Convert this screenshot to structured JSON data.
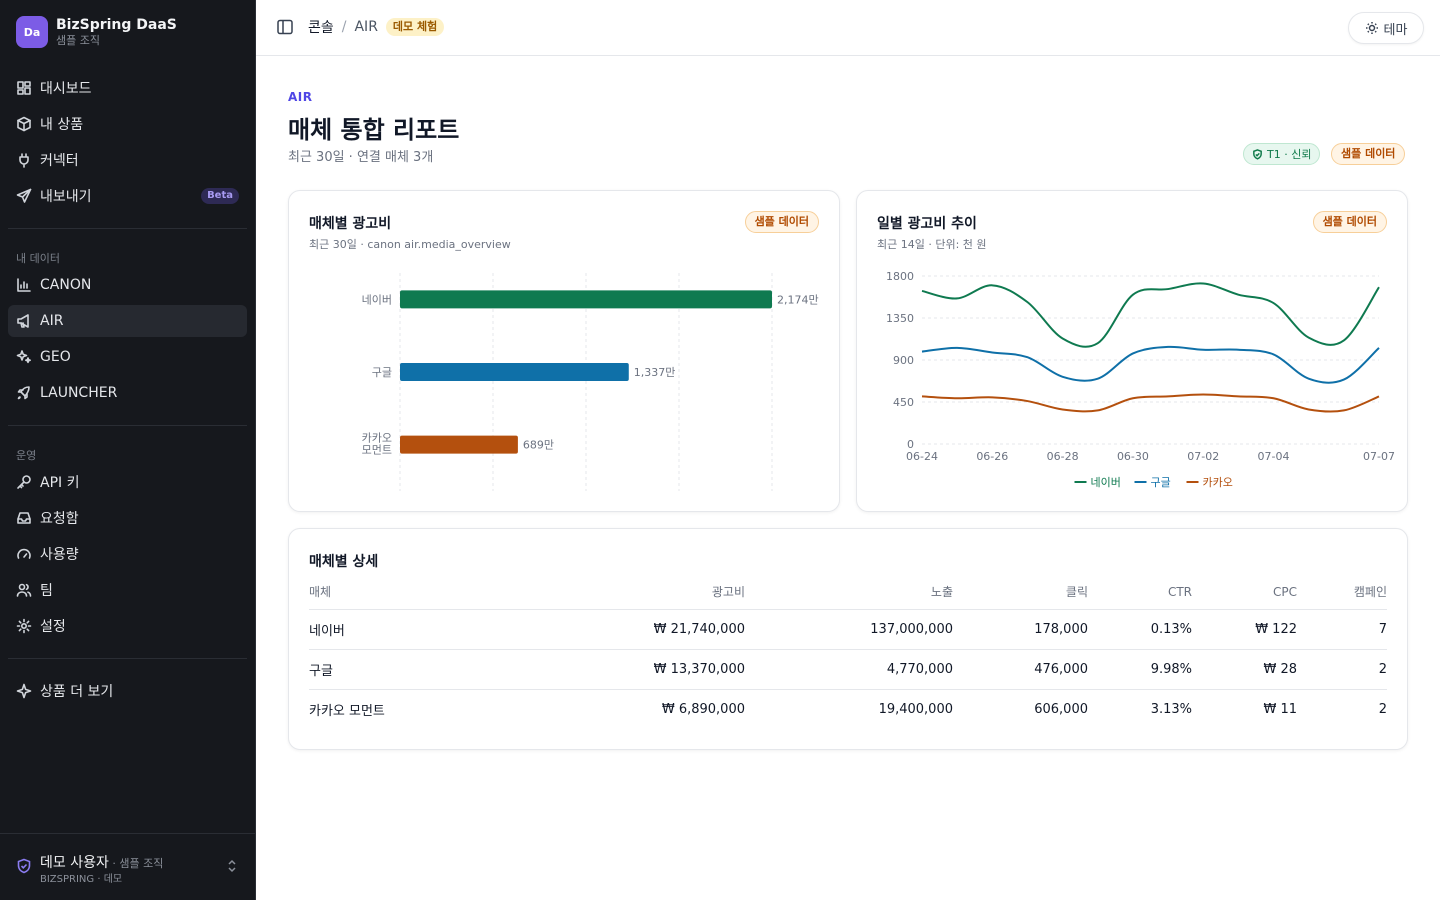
{
  "brand": {
    "logo": "Da",
    "name": "BizSpring DaaS",
    "org": "샘플 조직"
  },
  "nav_main": [
    {
      "label": "대시보드",
      "icon": "grid-icon"
    },
    {
      "label": "내 상품",
      "icon": "package-icon"
    },
    {
      "label": "커넥터",
      "icon": "plug-icon"
    },
    {
      "label": "내보내기",
      "icon": "send-icon",
      "badge": "Beta"
    }
  ],
  "section_data": "내 데이터",
  "nav_data": [
    {
      "label": "CANON",
      "icon": "bar-chart-icon"
    },
    {
      "label": "AIR",
      "icon": "megaphone-icon",
      "active": true
    },
    {
      "label": "GEO",
      "icon": "sparkles-icon"
    },
    {
      "label": "LAUNCHER",
      "icon": "rocket-icon"
    }
  ],
  "section_ops": "운영",
  "nav_ops": [
    {
      "label": "API 키",
      "icon": "key-icon"
    },
    {
      "label": "요청함",
      "icon": "inbox-icon"
    },
    {
      "label": "사용량",
      "icon": "gauge-icon"
    },
    {
      "label": "팀",
      "icon": "users-icon"
    },
    {
      "label": "설정",
      "icon": "gear-icon"
    }
  ],
  "nav_more": {
    "label": "상품 더 보기",
    "icon": "sparkle-icon"
  },
  "user": {
    "name": "데모 사용자",
    "org": " · 샘플 조직",
    "sub": "BIZSPRING · 데모"
  },
  "topbar": {
    "crumb_root": "콘솔",
    "crumb_sep": "/",
    "crumb_current": "AIR",
    "demo_badge": "데모 체험",
    "theme_label": "테마"
  },
  "header": {
    "eyebrow": "AIR",
    "title": "매체 통합 리포트",
    "subtitle": "최근 30일 · 연결 매체 3개",
    "trust_badge": "T1 · 신뢰",
    "sample_badge": "샘플 데이터"
  },
  "card_bar": {
    "title": "매체별 광고비",
    "subtitle": "최근 30일 · canon air.media_overview",
    "badge": "샘플 데이터"
  },
  "card_line": {
    "title": "일별 광고비 추이",
    "subtitle": "최근 14일 · 단위: 천 원",
    "badge": "샘플 데이터"
  },
  "colors": {
    "naver": "#0f7a50",
    "google": "#0f70a8",
    "kakao": "#b4500e",
    "accent": "#4f46e5"
  },
  "chart_data": [
    {
      "type": "bar",
      "orientation": "horizontal",
      "categories": [
        "네이버",
        "구글",
        "카카오 모먼트"
      ],
      "values": [
        2174,
        1337,
        689
      ],
      "value_labels": [
        "2,174만",
        "1,337만",
        "689만"
      ],
      "xlim": [
        0,
        2174
      ],
      "grid": true
    },
    {
      "type": "line",
      "x": [
        "06-24",
        "06-25",
        "06-26",
        "06-27",
        "06-28",
        "06-29",
        "06-30",
        "07-01",
        "07-02",
        "07-03",
        "07-04",
        "07-05",
        "07-06",
        "07-07"
      ],
      "x_tick_labels": [
        "06-24",
        "06-26",
        "06-28",
        "06-30",
        "07-02",
        "07-04",
        "07-07"
      ],
      "ylim": [
        0,
        1800
      ],
      "y_ticks": [
        0,
        450,
        900,
        1350,
        1800
      ],
      "grid": true,
      "legend_position": "bottom",
      "series": [
        {
          "name": "네이버",
          "values": [
            1640,
            1560,
            1700,
            1520,
            1130,
            1080,
            1600,
            1660,
            1720,
            1600,
            1510,
            1140,
            1110,
            1680
          ]
        },
        {
          "name": "구글",
          "values": [
            990,
            1030,
            980,
            930,
            720,
            700,
            970,
            1040,
            1010,
            1010,
            960,
            700,
            690,
            1030
          ]
        },
        {
          "name": "카카오",
          "values": [
            510,
            490,
            500,
            460,
            370,
            360,
            490,
            510,
            530,
            510,
            490,
            370,
            360,
            510
          ]
        }
      ]
    }
  ],
  "table": {
    "title": "매체별 상세",
    "headers": [
      "매체",
      "광고비",
      "노출",
      "클릭",
      "CTR",
      "CPC",
      "캠페인"
    ],
    "rows": [
      [
        "네이버",
        "₩ 21,740,000",
        "137,000,000",
        "178,000",
        "0.13%",
        "₩ 122",
        "7"
      ],
      [
        "구글",
        "₩ 13,370,000",
        "4,770,000",
        "476,000",
        "9.98%",
        "₩ 28",
        "2"
      ],
      [
        "카카오 모먼트",
        "₩ 6,890,000",
        "19,400,000",
        "606,000",
        "3.13%",
        "₩ 11",
        "2"
      ]
    ]
  }
}
